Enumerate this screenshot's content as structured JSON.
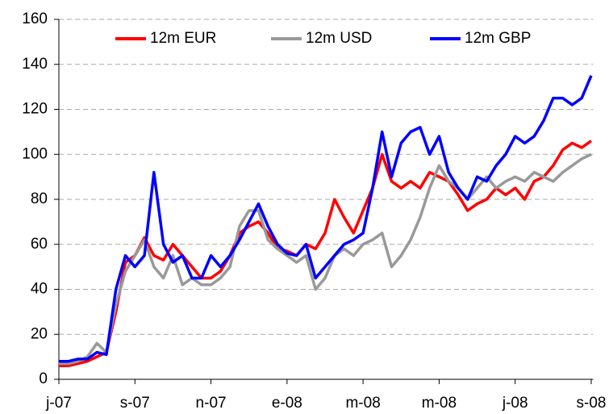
{
  "chart_data": {
    "type": "line",
    "x": [
      0,
      0.25,
      0.5,
      0.75,
      1,
      1.25,
      1.5,
      1.75,
      2,
      2.25,
      2.5,
      2.75,
      3,
      3.25,
      3.5,
      3.75,
      4,
      4.25,
      4.5,
      4.75,
      5,
      5.25,
      5.5,
      5.75,
      6,
      6.25,
      6.5,
      6.75,
      7,
      7.25,
      7.5,
      7.75,
      8,
      8.25,
      8.5,
      8.75,
      9,
      9.25,
      9.5,
      9.75,
      10,
      10.25,
      10.5,
      10.75,
      11,
      11.25,
      11.5,
      11.75,
      12,
      12.25,
      12.5,
      12.75,
      13,
      13.25,
      13.5,
      13.75,
      14
    ],
    "series": [
      {
        "name": "12m EUR",
        "color": "#ff0000",
        "values": [
          6,
          6,
          7,
          8,
          10,
          12,
          30,
          52,
          55,
          63,
          55,
          53,
          60,
          55,
          50,
          45,
          45,
          48,
          55,
          65,
          68,
          70,
          65,
          58,
          57,
          55,
          60,
          58,
          65,
          80,
          72,
          65,
          75,
          85,
          100,
          88,
          85,
          88,
          85,
          92,
          90,
          88,
          82,
          75,
          78,
          80,
          85,
          82,
          85,
          80,
          88,
          90,
          95,
          102,
          105,
          103,
          106
        ]
      },
      {
        "name": "12m USD",
        "color": "#999999",
        "values": [
          7,
          7,
          8,
          10,
          16,
          12,
          33,
          48,
          55,
          62,
          50,
          45,
          55,
          42,
          45,
          42,
          42,
          45,
          50,
          68,
          75,
          75,
          62,
          58,
          55,
          52,
          55,
          40,
          45,
          55,
          58,
          55,
          60,
          62,
          65,
          50,
          55,
          62,
          72,
          85,
          95,
          88,
          85,
          80,
          85,
          90,
          85,
          88,
          90,
          88,
          92,
          90,
          88,
          92,
          95,
          98,
          100
        ]
      },
      {
        "name": "12m GBP",
        "color": "#0000ff",
        "values": [
          8,
          8,
          9,
          9,
          12,
          11,
          40,
          55,
          50,
          55,
          92,
          60,
          52,
          55,
          45,
          45,
          55,
          50,
          55,
          62,
          70,
          78,
          68,
          60,
          56,
          55,
          60,
          45,
          50,
          55,
          60,
          62,
          65,
          85,
          110,
          90,
          105,
          110,
          112,
          100,
          108,
          92,
          85,
          80,
          90,
          88,
          95,
          100,
          108,
          105,
          108,
          115,
          125,
          125,
          122,
          125,
          135
        ]
      }
    ],
    "xlim": [
      0,
      14.05
    ],
    "xticks": [
      {
        "value": 0,
        "label": "j-07"
      },
      {
        "value": 2,
        "label": "s-07"
      },
      {
        "value": 4,
        "label": "n-07"
      },
      {
        "value": 6,
        "label": "e-08"
      },
      {
        "value": 8,
        "label": "m-08"
      },
      {
        "value": 10,
        "label": "m-08"
      },
      {
        "value": 12,
        "label": "j-08"
      },
      {
        "value": 14,
        "label": "s-08"
      }
    ],
    "ylim": [
      0,
      160
    ],
    "yticks": [
      0,
      20,
      40,
      60,
      80,
      100,
      120,
      140,
      160
    ],
    "grid": true,
    "legend": "top"
  }
}
